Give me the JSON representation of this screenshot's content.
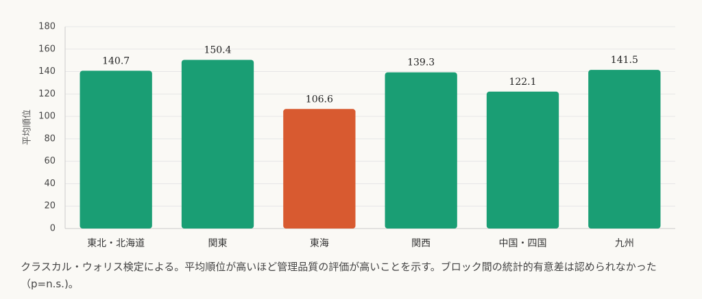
{
  "chart_data": {
    "type": "bar",
    "ylabel": "平均順位",
    "categories": [
      "東北・北海道",
      "関東",
      "東海",
      "関西",
      "中国・四国",
      "九州"
    ],
    "values": [
      140.7,
      150.4,
      106.6,
      139.3,
      122.1,
      141.5
    ],
    "colors": [
      "#1a9e74",
      "#1a9e74",
      "#d85a30",
      "#1a9e74",
      "#1a9e74",
      "#1a9e74"
    ],
    "ylim": [
      0,
      180
    ],
    "yticks": [
      0,
      20,
      40,
      60,
      80,
      100,
      120,
      140,
      160,
      180
    ],
    "grid": true,
    "caption": "クラスカル・ウォリス検定による。平均順位が高いほど管理品質の評価が高いことを示す。ブロック間の統計的有意差は認められなかった（p=n.s.)。"
  }
}
